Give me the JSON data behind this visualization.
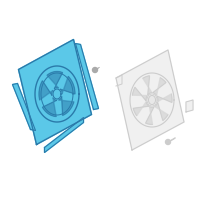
{
  "bg_color": "#ffffff",
  "shroud_fill": "#5bc8e8",
  "shroud_edge": "#2a7aaa",
  "fan_fill": "#f0f0f0",
  "fan_edge": "#aaaaaa",
  "outline_color": "#cccccc",
  "screw_color": "#aaaaaa",
  "figsize": [
    2.0,
    2.0
  ],
  "dpi": 100
}
